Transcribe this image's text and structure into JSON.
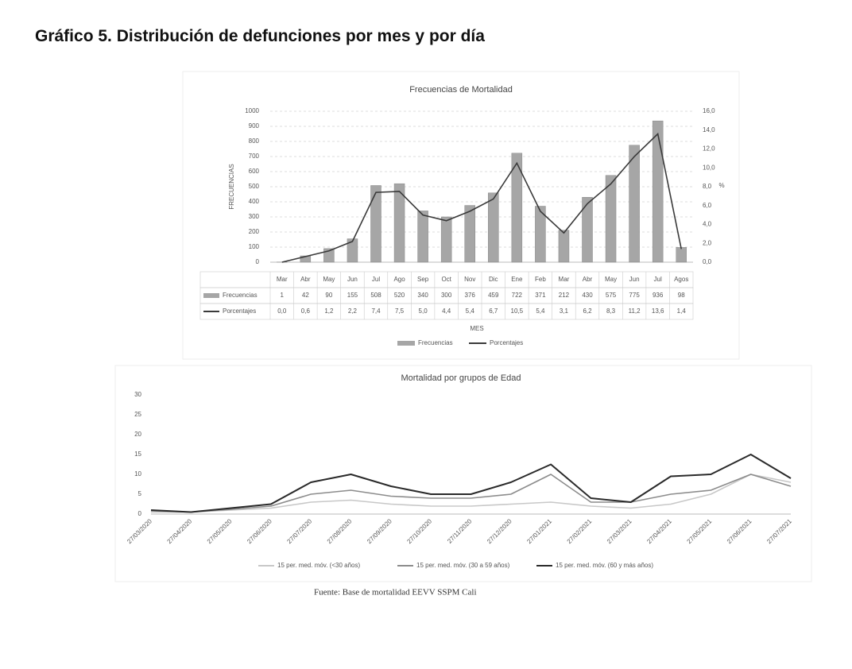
{
  "header": {
    "title": "Gráfico 5. Distribución de defunciones por mes y por día"
  },
  "chart_data": [
    {
      "type": "bar_line",
      "title": "Frecuencias de Mortalidad",
      "x_label": "MES",
      "y_label": "FRECUENCIAS",
      "y2_label": "%",
      "categories": [
        "Mar",
        "Abr",
        "May",
        "Jun",
        "Jul",
        "Ago",
        "Sep",
        "Oct",
        "Nov",
        "Dic",
        "Ene",
        "Feb",
        "Mar",
        "Abr",
        "May",
        "Jun",
        "Jul",
        "Agos"
      ],
      "series": [
        {
          "name": "Frecuencias",
          "color": "#a6a6a6",
          "values": [
            1,
            42,
            90,
            155,
            508,
            520,
            340,
            300,
            376,
            459,
            722,
            371,
            212,
            430,
            575,
            775,
            936,
            98
          ]
        },
        {
          "name": "Porcentajes",
          "color": "#3a3a3a",
          "axis": "y2",
          "values": [
            0.0,
            0.6,
            1.2,
            2.2,
            7.4,
            7.5,
            5.0,
            4.4,
            5.4,
            6.7,
            10.5,
            5.4,
            3.1,
            6.2,
            8.3,
            11.2,
            13.6,
            1.4
          ],
          "value_labels": [
            "0,0",
            "0,6",
            "1,2",
            "2,2",
            "7,4",
            "7,5",
            "5,0",
            "4,4",
            "5,4",
            "6,7",
            "10,5",
            "5,4",
            "3,1",
            "6,2",
            "8,3",
            "11,2",
            "13,6",
            "1,4"
          ]
        }
      ],
      "ylim": [
        0,
        1000
      ],
      "yticks": [
        0,
        100,
        200,
        300,
        400,
        500,
        600,
        700,
        800,
        900,
        1000
      ],
      "y2lim": [
        0,
        16
      ],
      "y2ticks": [
        {
          "value": 0,
          "label": "0,0"
        },
        {
          "value": 2,
          "label": "2,0"
        },
        {
          "value": 4,
          "label": "4,0"
        },
        {
          "value": 6,
          "label": "6,0"
        },
        {
          "value": 8,
          "label": "8,0"
        },
        {
          "value": 10,
          "label": "10,0"
        },
        {
          "value": 12,
          "label": "12,0"
        },
        {
          "value": 14,
          "label": "14,0"
        },
        {
          "value": 16,
          "label": "16,0"
        }
      ],
      "grid": true,
      "legend": "bottom"
    },
    {
      "type": "line",
      "title": "Mortalidad por grupos de Edad",
      "categories": [
        "27/03/2020",
        "27/04/2020",
        "27/05/2020",
        "27/06/2020",
        "27/07/2020",
        "27/08/2020",
        "27/09/2020",
        "27/10/2020",
        "27/11/2020",
        "27/12/2020",
        "27/01/2021",
        "27/02/2021",
        "27/03/2021",
        "27/04/2021",
        "27/05/2021",
        "27/06/2021",
        "27/07/2021"
      ],
      "series": [
        {
          "name": "15 per. med. móv. (<30 años)",
          "color": "#c8c8c8",
          "values": [
            0.5,
            0.5,
            1,
            1.5,
            3,
            3.5,
            2.5,
            2,
            2,
            2.5,
            3,
            2,
            1.5,
            2.5,
            5,
            10,
            8
          ]
        },
        {
          "name": "15 per. med. móv. (30 a 59 años)",
          "color": "#8c8c8c",
          "values": [
            0.8,
            0.5,
            1.2,
            2,
            5,
            6,
            4.5,
            4,
            4,
            5,
            10,
            3,
            3,
            5,
            6,
            10,
            7
          ]
        },
        {
          "name": "15 per. med. móv. (60 y más años)",
          "color": "#2a2a2a",
          "values": [
            1,
            0.5,
            1.5,
            2.5,
            8,
            10,
            7,
            5,
            5,
            8,
            12.5,
            4,
            3,
            9.5,
            10,
            15,
            9
          ]
        }
      ],
      "ylim": [
        0,
        30
      ],
      "yticks": [
        0,
        5,
        10,
        15,
        20,
        25,
        30
      ],
      "grid": false,
      "legend": "bottom"
    }
  ],
  "source": "Fuente: Base de mortalidad EEVV SSPM Cali"
}
